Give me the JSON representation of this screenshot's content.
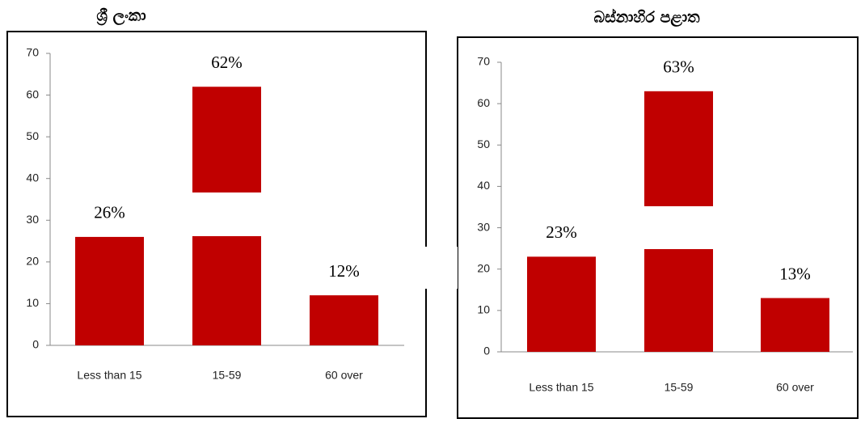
{
  "chart_data": [
    {
      "type": "bar",
      "title": "ශ්‍රී ලංකා",
      "categories": [
        "Less than 15",
        "15-59",
        "60 over"
      ],
      "values": [
        26,
        62,
        12
      ],
      "value_labels": [
        "26%",
        "62%",
        "12%"
      ],
      "color": "#c00000",
      "ylim": [
        0,
        70
      ],
      "yticks": [
        0,
        10,
        20,
        30,
        40,
        50,
        60,
        70
      ]
    },
    {
      "type": "bar",
      "title": "බස්නාහිර පළාත",
      "categories": [
        "Less than 15",
        "15-59",
        "60 over"
      ],
      "values": [
        23,
        63,
        13
      ],
      "value_labels": [
        "23%",
        "63%",
        "13%"
      ],
      "color": "#c00000",
      "ylim": [
        0,
        70
      ],
      "yticks": [
        0,
        10,
        20,
        30,
        40,
        50,
        60,
        70
      ]
    }
  ]
}
